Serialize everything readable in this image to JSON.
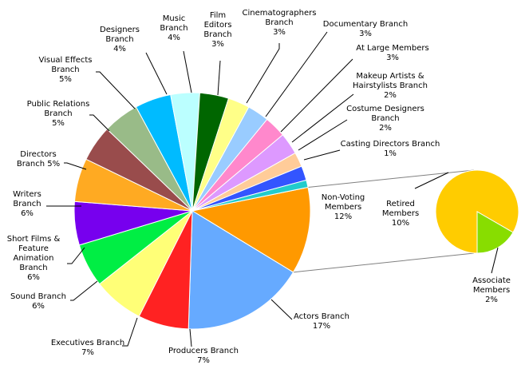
{
  "chart_data": {
    "type": "pie",
    "title": "",
    "main": {
      "slices": [
        {
          "key": "non-voting",
          "label": [
            "Non-Voting",
            "Members"
          ],
          "pct": "12%",
          "value": 12,
          "color": "#FF9900"
        },
        {
          "key": "actors",
          "label": [
            "Actors Branch"
          ],
          "pct": "17%",
          "value": 17,
          "color": "#66AAFF"
        },
        {
          "key": "producers",
          "label": [
            "Producers Branch"
          ],
          "pct": "7%",
          "value": 7,
          "color": "#FF2222"
        },
        {
          "key": "executives",
          "label": [
            "Executives Branch"
          ],
          "pct": "7%",
          "value": 7,
          "color": "#FFFF77"
        },
        {
          "key": "sound",
          "label": [
            "Sound Branch"
          ],
          "pct": "6%",
          "value": 6,
          "color": "#00EE44"
        },
        {
          "key": "short-films",
          "label": [
            "Short Films &",
            "Feature",
            "Animation",
            "Branch"
          ],
          "pct": "6%",
          "value": 6,
          "color": "#7700EE"
        },
        {
          "key": "writers",
          "label": [
            "Writers",
            "Branch"
          ],
          "pct": "6%",
          "value": 6,
          "color": "#FFAA22"
        },
        {
          "key": "directors",
          "label": [
            "Directors",
            "Branch 5%"
          ],
          "pct": "",
          "value": 5,
          "color": "#994C4C"
        },
        {
          "key": "public-relations",
          "label": [
            "Public Relations",
            "Branch"
          ],
          "pct": "5%",
          "value": 5,
          "color": "#99BB88"
        },
        {
          "key": "visual-effects",
          "label": [
            "Visual Effects",
            "Branch"
          ],
          "pct": "5%",
          "value": 5,
          "color": "#00BBFF"
        },
        {
          "key": "designers",
          "label": [
            "Designers",
            "Branch"
          ],
          "pct": "4%",
          "value": 4,
          "color": "#BBFFFF"
        },
        {
          "key": "music",
          "label": [
            "Music",
            "Branch"
          ],
          "pct": "4%",
          "value": 4,
          "color": "#006600"
        },
        {
          "key": "film-editors",
          "label": [
            "Film",
            "Editors",
            "Branch"
          ],
          "pct": "3%",
          "value": 3,
          "color": "#FFFF88"
        },
        {
          "key": "cinematographers",
          "label": [
            "Cinematographers",
            "Branch"
          ],
          "pct": "3%",
          "value": 3,
          "color": "#99CCFF"
        },
        {
          "key": "documentary",
          "label": [
            "Documentary Branch"
          ],
          "pct": "3%",
          "value": 3,
          "color": "#FF88CC"
        },
        {
          "key": "at-large",
          "label": [
            "At Large Members"
          ],
          "pct": "3%",
          "value": 3,
          "color": "#DD99FF"
        },
        {
          "key": "makeup",
          "label": [
            "Makeup Artists &",
            "Hairstylists Branch"
          ],
          "pct": "2%",
          "value": 2,
          "color": "#FFCC99"
        },
        {
          "key": "costume",
          "label": [
            "Costume Designers",
            "Branch"
          ],
          "pct": "2%",
          "value": 2,
          "color": "#3355FF"
        },
        {
          "key": "casting",
          "label": [
            "Casting Directors Branch"
          ],
          "pct": "1%",
          "value": 1,
          "color": "#22CCCC"
        }
      ]
    },
    "breakout": {
      "of": "non-voting",
      "slices": [
        {
          "key": "retired",
          "label": [
            "Retired",
            "Members"
          ],
          "pct": "10%",
          "value": 10,
          "color": "#FFCC00"
        },
        {
          "key": "associate",
          "label": [
            "Associate",
            "Members"
          ],
          "pct": "2%",
          "value": 2,
          "color": "#88DD00"
        }
      ]
    }
  }
}
